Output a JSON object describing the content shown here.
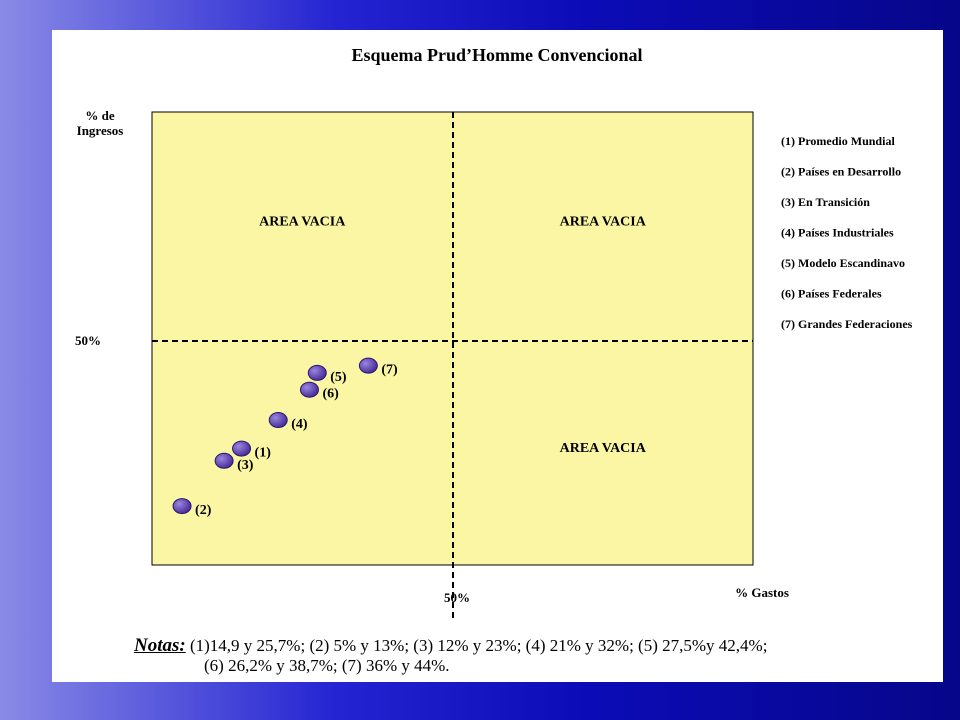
{
  "colors": {
    "plot_bg": "#fbf6a4",
    "marker": "#4a2f9a",
    "marker_highlight": "#9a86e0"
  },
  "chart_data": {
    "type": "scatter",
    "title": "Esquema Prud’Homme Convencional",
    "xlabel": "% Gastos",
    "ylabel_line1": "% de",
    "ylabel_line2": "Ingresos",
    "xlim": [
      0,
      100
    ],
    "ylim": [
      0,
      100
    ],
    "x_mid_label": "50%",
    "y_mid_label": "50%",
    "quadrant_labels": [
      {
        "text": "AREA VACIA",
        "x": 25,
        "y": 75
      },
      {
        "text": "AREA VACIA",
        "x": 75,
        "y": 75
      },
      {
        "text": "AREA VACIA",
        "x": 75,
        "y": 25
      }
    ],
    "points": [
      {
        "label": "(1)",
        "x": 14.9,
        "y": 25.7
      },
      {
        "label": "(2)",
        "x": 5,
        "y": 13
      },
      {
        "label": "(3)",
        "x": 12,
        "y": 23
      },
      {
        "label": "(4)",
        "x": 21,
        "y": 32
      },
      {
        "label": "(5)",
        "x": 27.5,
        "y": 42.4
      },
      {
        "label": "(6)",
        "x": 26.2,
        "y": 38.7
      },
      {
        "label": "(7)",
        "x": 36,
        "y": 44
      }
    ],
    "legend": [
      "(1) Promedio Mundial",
      "(2) Países en Desarrollo",
      "(3) En Transición",
      "(4) Países Industriales",
      "(5) Modelo Escandinavo",
      "(6) Países Federales",
      "(7) Grandes Federaciones"
    ]
  },
  "notes": {
    "label": "Notas:",
    "line1": "(1)14,9 y 25,7%; (2) 5% y 13%; (3) 12% y 23%; (4) 21% y 32%; (5) 27,5%y 42,4%;",
    "line2": "(6) 26,2% y 38,7%; (7) 36% y 44%."
  }
}
